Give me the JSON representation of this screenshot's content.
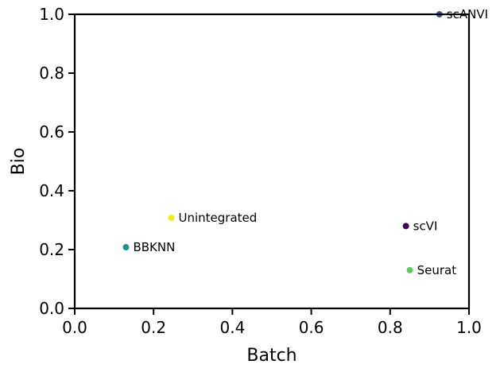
{
  "chart_data": {
    "type": "scatter",
    "title": "",
    "xlabel": "Batch",
    "ylabel": "Bio",
    "xlim": [
      0.0,
      1.0
    ],
    "ylim": [
      0.0,
      1.0
    ],
    "grid": false,
    "x_ticks": [
      "0.0",
      "0.2",
      "0.4",
      "0.6",
      "0.8",
      "1.0"
    ],
    "y_ticks": [
      "0.0",
      "0.2",
      "0.4",
      "0.6",
      "0.8",
      "1.0"
    ],
    "points": [
      {
        "label": "scANVI",
        "x": 0.925,
        "y": 1.0,
        "color": "#3b528b"
      },
      {
        "label": "Unintegrated",
        "x": 0.245,
        "y": 0.308,
        "color": "#fde725"
      },
      {
        "label": "scVI",
        "x": 0.84,
        "y": 0.28,
        "color": "#440154"
      },
      {
        "label": "BBKNN",
        "x": 0.13,
        "y": 0.208,
        "color": "#21918c"
      },
      {
        "label": "Seurat",
        "x": 0.85,
        "y": 0.13,
        "color": "#5ec962"
      }
    ]
  }
}
